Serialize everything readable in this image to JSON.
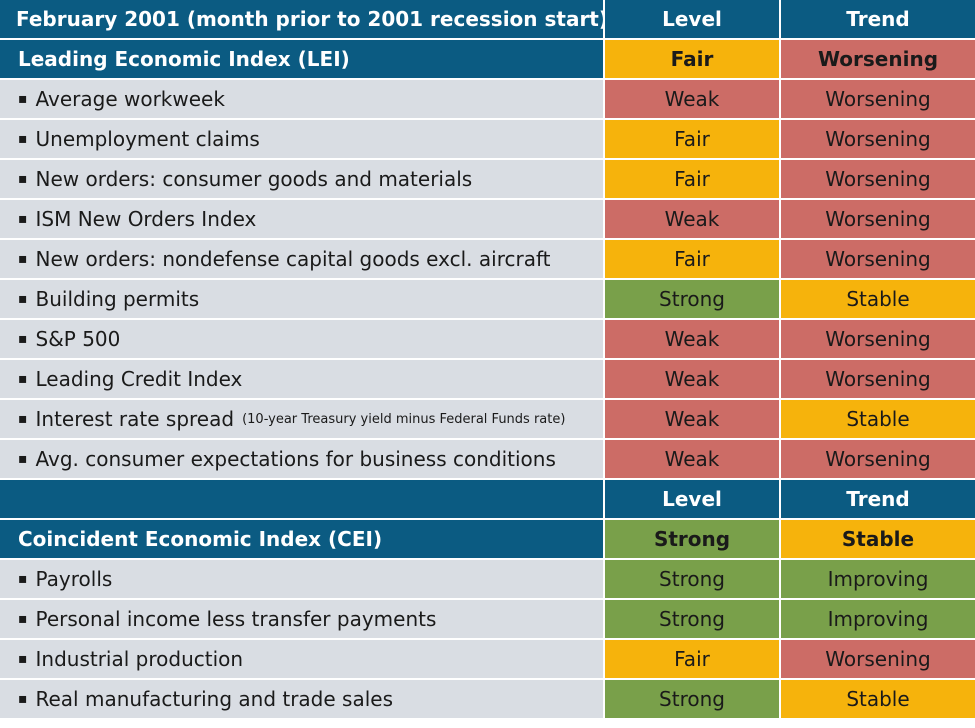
{
  "colors": {
    "header": "#0b5b82",
    "row_label": "#d9dde3",
    "Strong": "#79a04a",
    "Fair": "#f6b30c",
    "Weak": "#cc6c66",
    "Worsening": "#cc6c66",
    "Stable": "#f6b30c",
    "Improving": "#79a04a"
  },
  "bullet": "▪",
  "rows": [
    {
      "kind": "head",
      "label": "February 2001 (month prior to 2001 recession start)",
      "level": "Level",
      "trend": "Trend"
    },
    {
      "kind": "index",
      "label": "Leading Economic Index (LEI)",
      "level": "Fair",
      "trend": "Worsening"
    },
    {
      "kind": "item",
      "label": "Average workweek",
      "level": "Weak",
      "trend": "Worsening"
    },
    {
      "kind": "item",
      "label": "Unemployment claims",
      "level": "Fair",
      "trend": "Worsening"
    },
    {
      "kind": "item",
      "label": "New orders: consumer goods and materials",
      "level": "Fair",
      "trend": "Worsening"
    },
    {
      "kind": "item",
      "label": "ISM New Orders Index",
      "level": "Weak",
      "trend": "Worsening"
    },
    {
      "kind": "item",
      "label": "New orders: nondefense capital goods excl. aircraft",
      "level": "Fair",
      "trend": "Worsening"
    },
    {
      "kind": "item",
      "label": "Building permits",
      "level": "Strong",
      "trend": "Stable"
    },
    {
      "kind": "item",
      "label": "S&P 500",
      "level": "Weak",
      "trend": "Worsening"
    },
    {
      "kind": "item",
      "label": "Leading Credit Index",
      "level": "Weak",
      "trend": "Worsening"
    },
    {
      "kind": "item",
      "label": "Interest rate spread",
      "note": "(10-year Treasury yield minus Federal Funds rate)",
      "level": "Weak",
      "trend": "Stable"
    },
    {
      "kind": "item",
      "label": "Avg. consumer expectations for business conditions",
      "level": "Weak",
      "trend": "Worsening"
    },
    {
      "kind": "head",
      "label": "",
      "level": "Level",
      "trend": "Trend"
    },
    {
      "kind": "index",
      "label": "Coincident Economic Index (CEI)",
      "level": "Strong",
      "trend": "Stable"
    },
    {
      "kind": "item",
      "label": "Payrolls",
      "level": "Strong",
      "trend": "Improving"
    },
    {
      "kind": "item",
      "label": "Personal income less transfer payments",
      "level": "Strong",
      "trend": "Improving"
    },
    {
      "kind": "item",
      "label": "Industrial production",
      "level": "Fair",
      "trend": "Worsening"
    },
    {
      "kind": "item",
      "label": "Real manufacturing and trade sales",
      "level": "Strong",
      "trend": "Stable"
    }
  ]
}
